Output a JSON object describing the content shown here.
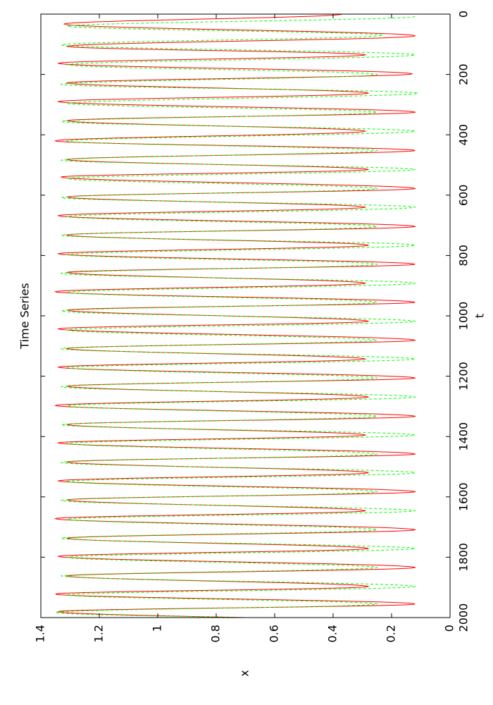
{
  "chart_data": {
    "type": "line",
    "title": "Time Series",
    "xlabel": "t",
    "ylabel": "x",
    "xlim": [
      0,
      2000
    ],
    "ylim": [
      0,
      1.4
    ],
    "x_ticks": [
      0,
      200,
      400,
      600,
      800,
      1000,
      1200,
      1400,
      1600,
      1800,
      2000
    ],
    "x_tick_labels": [
      "0",
      "200",
      "400",
      "600",
      "800",
      "1000",
      "1200",
      "1400",
      "1600",
      "1800",
      "2000"
    ],
    "y_ticks": [
      0,
      0.2,
      0.4,
      0.6,
      0.8,
      1,
      1.2,
      1.4
    ],
    "y_tick_labels": [
      "0",
      "0.2",
      "0.4",
      "0.6",
      "0.8",
      "1",
      "1.2",
      "1.4"
    ],
    "orientation": "rotated-90-clockwise",
    "grid": false,
    "series": [
      {
        "style": "solid",
        "color": "#ff0000",
        "period": 62.5,
        "peaks": [
          {
            "t": 33,
            "x": 1.32
          },
          {
            "t": 107,
            "x": 1.31
          },
          {
            "t": 163,
            "x": 1.34
          },
          {
            "t": 228,
            "x": 1.31
          },
          {
            "t": 290,
            "x": 1.34
          },
          {
            "t": 353,
            "x": 1.31
          },
          {
            "t": 420,
            "x": 1.35
          },
          {
            "t": 482,
            "x": 1.31
          },
          {
            "t": 540,
            "x": 1.33
          },
          {
            "t": 606,
            "x": 1.31
          },
          {
            "t": 668,
            "x": 1.34
          },
          {
            "t": 732,
            "x": 1.31
          },
          {
            "t": 794,
            "x": 1.34
          },
          {
            "t": 856,
            "x": 1.31
          },
          {
            "t": 920,
            "x": 1.35
          },
          {
            "t": 981,
            "x": 1.31
          },
          {
            "t": 1043,
            "x": 1.34
          },
          {
            "t": 1108,
            "x": 1.31
          },
          {
            "t": 1170,
            "x": 1.34
          },
          {
            "t": 1233,
            "x": 1.31
          },
          {
            "t": 1297,
            "x": 1.35
          },
          {
            "t": 1360,
            "x": 1.31
          },
          {
            "t": 1421,
            "x": 1.34
          },
          {
            "t": 1484,
            "x": 1.31
          },
          {
            "t": 1547,
            "x": 1.34
          },
          {
            "t": 1610,
            "x": 1.31
          },
          {
            "t": 1672,
            "x": 1.35
          },
          {
            "t": 1737,
            "x": 1.31
          },
          {
            "t": 1797,
            "x": 1.34
          },
          {
            "t": 1862,
            "x": 1.31
          },
          {
            "t": 1922,
            "x": 1.35
          },
          {
            "t": 1980,
            "x": 1.34
          }
        ],
        "troughs": [
          {
            "t": 0,
            "x": 0.37
          },
          {
            "t": 72,
            "x": 0.12
          },
          {
            "t": 135,
            "x": 0.29
          },
          {
            "t": 198,
            "x": 0.13
          },
          {
            "t": 262,
            "x": 0.28
          },
          {
            "t": 325,
            "x": 0.12
          },
          {
            "t": 388,
            "x": 0.29
          },
          {
            "t": 452,
            "x": 0.12
          },
          {
            "t": 515,
            "x": 0.28
          },
          {
            "t": 578,
            "x": 0.12
          },
          {
            "t": 640,
            "x": 0.29
          },
          {
            "t": 704,
            "x": 0.12
          },
          {
            "t": 766,
            "x": 0.28
          },
          {
            "t": 829,
            "x": 0.12
          },
          {
            "t": 892,
            "x": 0.29
          },
          {
            "t": 955,
            "x": 0.12
          },
          {
            "t": 1018,
            "x": 0.28
          },
          {
            "t": 1081,
            "x": 0.12
          },
          {
            "t": 1143,
            "x": 0.29
          },
          {
            "t": 1206,
            "x": 0.12
          },
          {
            "t": 1269,
            "x": 0.28
          },
          {
            "t": 1333,
            "x": 0.12
          },
          {
            "t": 1395,
            "x": 0.29
          },
          {
            "t": 1458,
            "x": 0.12
          },
          {
            "t": 1520,
            "x": 0.28
          },
          {
            "t": 1583,
            "x": 0.12
          },
          {
            "t": 1646,
            "x": 0.29
          },
          {
            "t": 1709,
            "x": 0.12
          },
          {
            "t": 1771,
            "x": 0.28
          },
          {
            "t": 1834,
            "x": 0.12
          },
          {
            "t": 1897,
            "x": 0.28
          },
          {
            "t": 1955,
            "x": 0.12
          }
        ]
      },
      {
        "style": "dashed",
        "color": "#00ff00",
        "period": 62.5,
        "peaks": [
          {
            "t": 40,
            "x": 1.31
          },
          {
            "t": 102,
            "x": 1.33
          },
          {
            "t": 168,
            "x": 1.31
          },
          {
            "t": 233,
            "x": 1.33
          },
          {
            "t": 296,
            "x": 1.31
          },
          {
            "t": 356,
            "x": 1.33
          },
          {
            "t": 421,
            "x": 1.31
          },
          {
            "t": 484,
            "x": 1.33
          },
          {
            "t": 545,
            "x": 1.31
          },
          {
            "t": 608,
            "x": 1.33
          },
          {
            "t": 671,
            "x": 1.31
          },
          {
            "t": 733,
            "x": 1.33
          },
          {
            "t": 797,
            "x": 1.31
          },
          {
            "t": 859,
            "x": 1.33
          },
          {
            "t": 922,
            "x": 1.31
          },
          {
            "t": 984,
            "x": 1.33
          },
          {
            "t": 1047,
            "x": 1.31
          },
          {
            "t": 1109,
            "x": 1.33
          },
          {
            "t": 1172,
            "x": 1.31
          },
          {
            "t": 1235,
            "x": 1.33
          },
          {
            "t": 1298,
            "x": 1.31
          },
          {
            "t": 1361,
            "x": 1.33
          },
          {
            "t": 1423,
            "x": 1.31
          },
          {
            "t": 1486,
            "x": 1.33
          },
          {
            "t": 1549,
            "x": 1.31
          },
          {
            "t": 1612,
            "x": 1.33
          },
          {
            "t": 1674,
            "x": 1.31
          },
          {
            "t": 1737,
            "x": 1.33
          },
          {
            "t": 1800,
            "x": 1.31
          },
          {
            "t": 1862,
            "x": 1.33
          },
          {
            "t": 1925,
            "x": 1.31
          },
          {
            "t": 1983,
            "x": 1.35
          }
        ],
        "troughs": [
          {
            "t": 8,
            "x": 0.12
          },
          {
            "t": 70,
            "x": 0.23
          },
          {
            "t": 135,
            "x": 0.12
          },
          {
            "t": 200,
            "x": 0.25
          },
          {
            "t": 262,
            "x": 0.11
          },
          {
            "t": 325,
            "x": 0.25
          },
          {
            "t": 388,
            "x": 0.12
          },
          {
            "t": 452,
            "x": 0.25
          },
          {
            "t": 515,
            "x": 0.12
          },
          {
            "t": 578,
            "x": 0.25
          },
          {
            "t": 640,
            "x": 0.12
          },
          {
            "t": 704,
            "x": 0.25
          },
          {
            "t": 766,
            "x": 0.12
          },
          {
            "t": 829,
            "x": 0.25
          },
          {
            "t": 892,
            "x": 0.12
          },
          {
            "t": 955,
            "x": 0.25
          },
          {
            "t": 1018,
            "x": 0.12
          },
          {
            "t": 1081,
            "x": 0.25
          },
          {
            "t": 1143,
            "x": 0.12
          },
          {
            "t": 1206,
            "x": 0.25
          },
          {
            "t": 1269,
            "x": 0.12
          },
          {
            "t": 1333,
            "x": 0.25
          },
          {
            "t": 1395,
            "x": 0.12
          },
          {
            "t": 1458,
            "x": 0.25
          },
          {
            "t": 1520,
            "x": 0.12
          },
          {
            "t": 1583,
            "x": 0.25
          },
          {
            "t": 1646,
            "x": 0.12
          },
          {
            "t": 1709,
            "x": 0.25
          },
          {
            "t": 1771,
            "x": 0.12
          },
          {
            "t": 1834,
            "x": 0.25
          },
          {
            "t": 1897,
            "x": 0.12
          },
          {
            "t": 1955,
            "x": 0.25
          }
        ]
      }
    ]
  }
}
